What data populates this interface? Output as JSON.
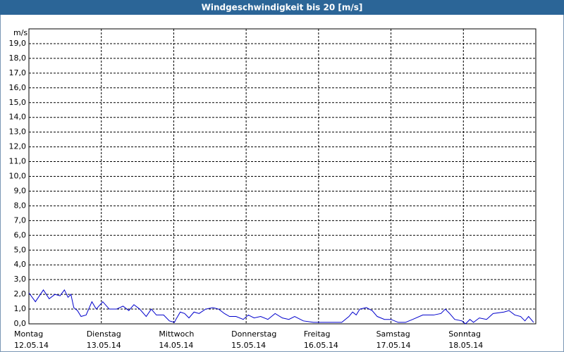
{
  "chart_data": {
    "type": "line",
    "title": "Windgeschwindigkeit bis 20 [m/s]",
    "y_unit": "m/s",
    "x": [
      0,
      0.09,
      0.2,
      0.28,
      0.36,
      0.43,
      0.49,
      0.54,
      0.58,
      0.62,
      0.67,
      0.72,
      0.79,
      0.87,
      0.93,
      1.02,
      1.11,
      1.21,
      1.3,
      1.38,
      1.45,
      1.53,
      1.62,
      1.69,
      1.76,
      1.86,
      1.94,
      2.01,
      2.03,
      2.09,
      2.15,
      2.21,
      2.28,
      2.35,
      2.44,
      2.54,
      2.62,
      2.7,
      2.77,
      2.86,
      2.96,
      3.03,
      3.11,
      3.2,
      3.3,
      3.4,
      3.5,
      3.59,
      3.67,
      3.79,
      3.93,
      4.18,
      4.32,
      4.42,
      4.47,
      4.52,
      4.57,
      4.66,
      4.74,
      4.81,
      4.91,
      5.0,
      5.1,
      5.2,
      5.3,
      5.44,
      5.59,
      5.69,
      5.75,
      5.81,
      5.88,
      5.98,
      6.03,
      6.09,
      6.14,
      6.22,
      6.32,
      6.41,
      6.56,
      6.63,
      6.71,
      6.79,
      6.85,
      6.9,
      6.97
    ],
    "series": [
      {
        "color": "#0000cc",
        "values": [
          2.1,
          1.5,
          2.3,
          1.7,
          2.0,
          1.9,
          2.3,
          1.8,
          2.0,
          1.1,
          0.9,
          0.5,
          0.6,
          1.5,
          1.0,
          1.5,
          1.0,
          1.0,
          1.2,
          0.9,
          1.3,
          1.0,
          0.5,
          1.0,
          0.6,
          0.6,
          0.2,
          0.1,
          0.3,
          0.8,
          0.7,
          0.4,
          0.8,
          0.7,
          1.0,
          1.1,
          1.0,
          0.7,
          0.5,
          0.5,
          0.3,
          0.6,
          0.4,
          0.5,
          0.3,
          0.7,
          0.4,
          0.3,
          0.5,
          0.2,
          0.1,
          0.1,
          0.1,
          0.5,
          0.8,
          0.6,
          1.0,
          1.1,
          0.9,
          0.5,
          0.3,
          0.3,
          0.1,
          0.1,
          0.3,
          0.6,
          0.6,
          0.7,
          1.0,
          0.7,
          0.3,
          0.2,
          0.0,
          0.3,
          0.1,
          0.4,
          0.3,
          0.7,
          0.8,
          0.9,
          0.6,
          0.5,
          0.2,
          0.5,
          0.1
        ]
      }
    ],
    "xlim": [
      0,
      7
    ],
    "xticks": [
      {
        "value": 0,
        "label": "Montag"
      },
      {
        "value": 1,
        "label": "Dienstag"
      },
      {
        "value": 2,
        "label": "Mittwoch"
      },
      {
        "value": 3,
        "label": "Donnerstag"
      },
      {
        "value": 4,
        "label": "Freitag"
      },
      {
        "value": 5,
        "label": "Samstag"
      },
      {
        "value": 6,
        "label": "Sonntag"
      }
    ],
    "xtick_dates": [
      "12.05.14",
      "13.05.14",
      "14.05.14",
      "15.05.14",
      "16.05.14",
      "17.05.14",
      "18.05.14"
    ],
    "ylim": [
      0,
      20
    ],
    "yticks": [
      {
        "value": 0,
        "label": "0,0"
      },
      {
        "value": 1,
        "label": "1,0"
      },
      {
        "value": 2,
        "label": "2,0"
      },
      {
        "value": 3,
        "label": "3,0"
      },
      {
        "value": 4,
        "label": "4,0"
      },
      {
        "value": 5,
        "label": "5,0"
      },
      {
        "value": 6,
        "label": "6,0"
      },
      {
        "value": 7,
        "label": "7,0"
      },
      {
        "value": 8,
        "label": "8,0"
      },
      {
        "value": 9,
        "label": "9,0"
      },
      {
        "value": 10,
        "label": "10,0"
      },
      {
        "value": 11,
        "label": "11,0"
      },
      {
        "value": 12,
        "label": "12,0"
      },
      {
        "value": 13,
        "label": "13,0"
      },
      {
        "value": 14,
        "label": "14,0"
      },
      {
        "value": 15,
        "label": "15,0"
      },
      {
        "value": 16,
        "label": "16,0"
      },
      {
        "value": 17,
        "label": "17,0"
      },
      {
        "value": 18,
        "label": "18,0"
      },
      {
        "value": 19,
        "label": "19,0"
      }
    ],
    "grid": true
  }
}
